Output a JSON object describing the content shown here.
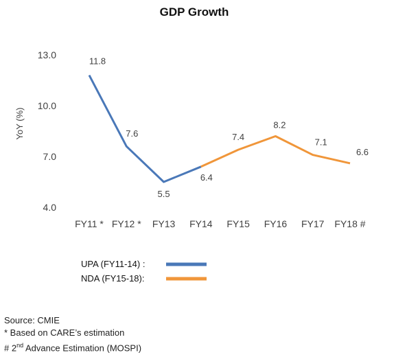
{
  "chart_data": {
    "type": "line",
    "title": "GDP Growth",
    "ylabel": "YoY (%)",
    "xlabel": "",
    "categories": [
      "FY11 *",
      "FY12 *",
      "FY13",
      "FY14",
      "FY15",
      "FY16",
      "FY17",
      "FY18 #"
    ],
    "y_ticks": [
      "13.0",
      "10.0",
      "7.0",
      "4.0"
    ],
    "ylim": [
      4.0,
      13.0
    ],
    "grid": false,
    "legend_position": "bottom-left",
    "series": [
      {
        "name": "UPA (FY11-14) :",
        "color": "#4a78b8",
        "x": [
          "FY11 *",
          "FY12 *",
          "FY13",
          "FY14"
        ],
        "values": [
          11.8,
          7.6,
          5.5,
          6.4
        ],
        "labels": [
          "11.8",
          "7.6",
          "5.5",
          "6.4"
        ]
      },
      {
        "name": "NDA (FY15-18):",
        "color": "#f0963a",
        "x": [
          "FY14",
          "FY15",
          "FY16",
          "FY17",
          "FY18 #"
        ],
        "values": [
          6.4,
          7.4,
          8.2,
          7.1,
          6.6
        ],
        "labels": [
          null,
          "7.4",
          "8.2",
          "7.1",
          "6.6"
        ]
      }
    ]
  },
  "footnotes": {
    "source": "Source: CMIE",
    "note1": "* Based on CARE’s estimation",
    "note2_prefix": "# 2",
    "note2_sup": "nd",
    "note2_suffix": " Advance Estimation (MOSPI)"
  }
}
